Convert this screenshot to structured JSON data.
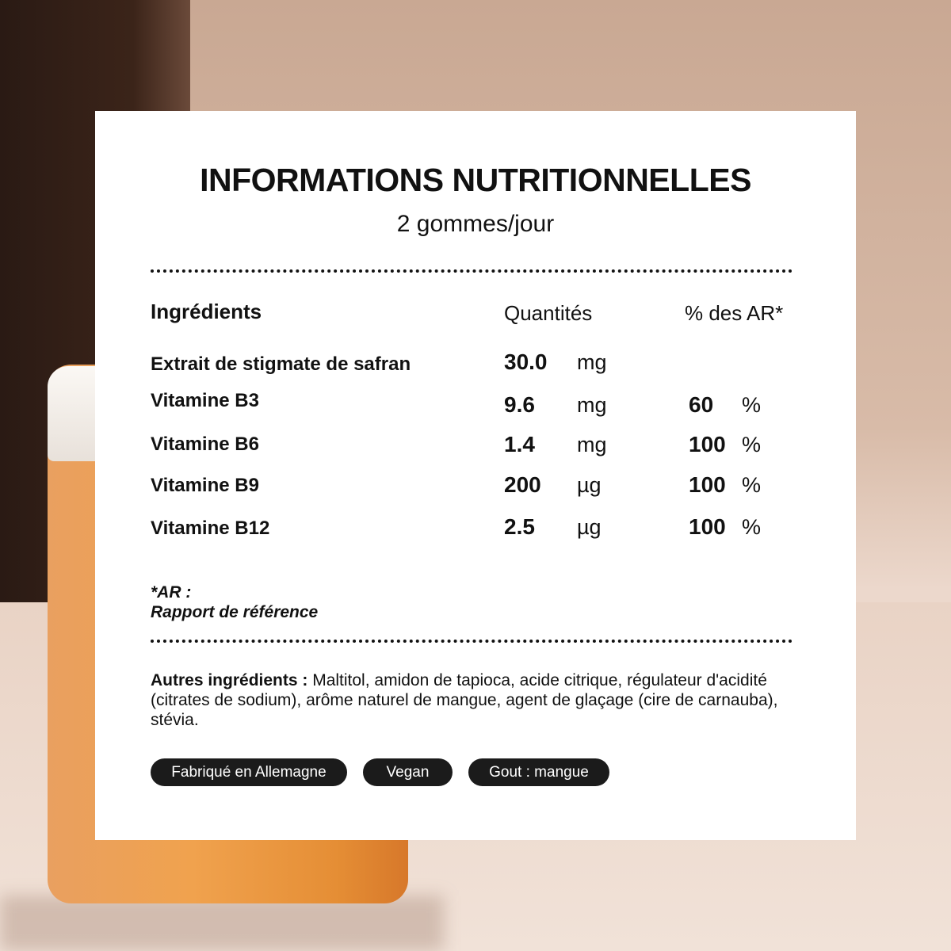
{
  "title": "INFORMATIONS NUTRITIONNELLES",
  "subtitle": "2 gommes/jour",
  "headers": {
    "ingredients": "Ingrédients",
    "quantities": "Quantités",
    "ar": "% des AR*"
  },
  "rows": [
    {
      "name": "Extrait de stigmate de safran",
      "qty": "30.0",
      "unit": "mg",
      "pct": "",
      "pct_sign": ""
    },
    {
      "name": "Vitamine B3",
      "qty": "9.6",
      "unit": "mg",
      "pct": "60",
      "pct_sign": "%"
    },
    {
      "name": "Vitamine B6",
      "qty": "1.4",
      "unit": "mg",
      "pct": "100",
      "pct_sign": "%"
    },
    {
      "name": "Vitamine B9",
      "qty": "200",
      "unit": "µg",
      "pct": "100",
      "pct_sign": "%"
    },
    {
      "name": "Vitamine B12",
      "qty": "2.5",
      "unit": "µg",
      "pct": "100",
      "pct_sign": "%"
    }
  ],
  "note": {
    "line1": "*AR :",
    "line2": "Rapport de référence"
  },
  "other": {
    "label": "Autres ingrédients :",
    "text": " Maltitol, amidon de tapioca, acide citrique, régulateur d'acidité (citrates de sodium), arôme naturel de mangue, agent de glaçage (cire de carnauba), stévia."
  },
  "badges": [
    "Fabriqué en Allemagne",
    "Vegan",
    "Gout : mangue"
  ]
}
